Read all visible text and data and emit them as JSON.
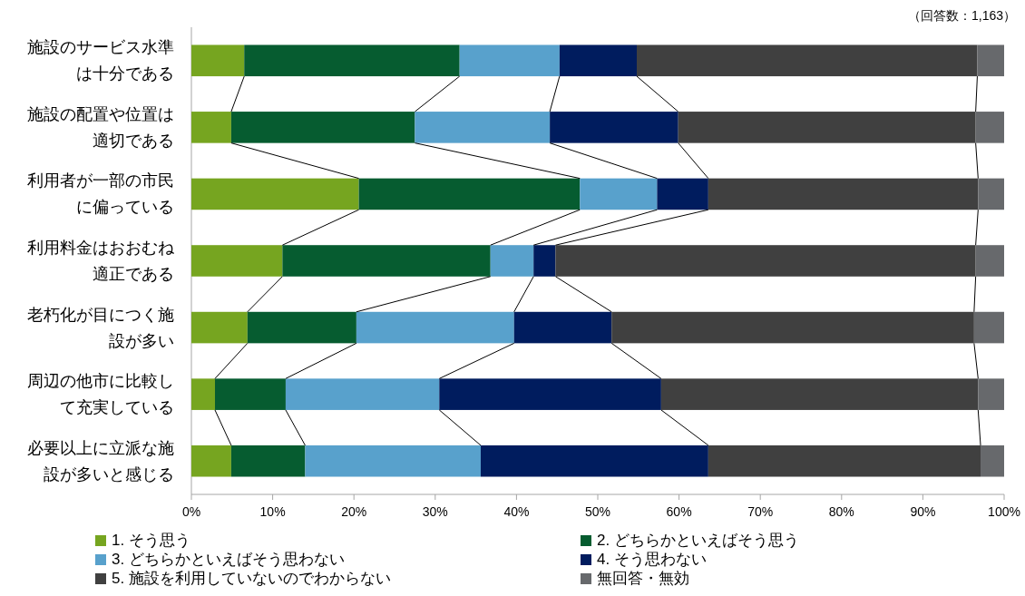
{
  "chart_data": {
    "type": "bar",
    "orientation": "horizontal",
    "stacked": true,
    "categories": [
      "施設のサービス水準は十分である",
      "施設の配置や位置は適切である",
      "利用者が一部の市民に偏っている",
      "利用料金はおおむね適正である",
      "老朽化が目につく施設が多い",
      "周辺の他市に比較して充実している",
      "必要以上に立派な施設が多いと感じる"
    ],
    "series": [
      {
        "name": "1. そう思う",
        "color": "#76a520",
        "values": [
          6.5,
          4.9,
          20.6,
          11.2,
          6.9,
          2.9,
          4.9
        ]
      },
      {
        "name": "2. どちらかといえばそう思う",
        "color": "#065c30",
        "values": [
          26.5,
          22.6,
          27.2,
          25.6,
          13.4,
          8.7,
          9.1
        ]
      },
      {
        "name": "3. どちらかといえばそう思わない",
        "color": "#58a1cc",
        "values": [
          12.3,
          16.6,
          9.5,
          5.3,
          19.4,
          18.9,
          21.6
        ]
      },
      {
        "name": "4. そう思わない",
        "color": "#001c5e",
        "values": [
          9.5,
          15.8,
          6.3,
          2.7,
          12.0,
          27.3,
          28.0
        ]
      },
      {
        "name": "5. 施設を利用していないのでわからない",
        "color": "#404040",
        "values": [
          41.9,
          36.6,
          33.2,
          51.7,
          44.6,
          39.0,
          33.5
        ]
      },
      {
        "name": "無回答・無効",
        "color": "#67696c",
        "values": [
          3.3,
          3.5,
          3.2,
          3.5,
          3.7,
          3.2,
          2.9
        ]
      }
    ],
    "xlim": [
      0,
      100
    ],
    "xticks": [
      {
        "value": 0,
        "label": "0%"
      },
      {
        "value": 10,
        "label": "10%"
      },
      {
        "value": 20,
        "label": "20%"
      },
      {
        "value": 30,
        "label": "30%"
      },
      {
        "value": 40,
        "label": "40%"
      },
      {
        "value": 50,
        "label": "50%"
      },
      {
        "value": 60,
        "label": "60%"
      },
      {
        "value": 70,
        "label": "70%"
      },
      {
        "value": 80,
        "label": "80%"
      },
      {
        "value": 90,
        "label": "90%"
      },
      {
        "value": 100,
        "label": "100%"
      }
    ],
    "legend": "bottom",
    "annotations": [
      "（回答数：1,163）"
    ]
  }
}
